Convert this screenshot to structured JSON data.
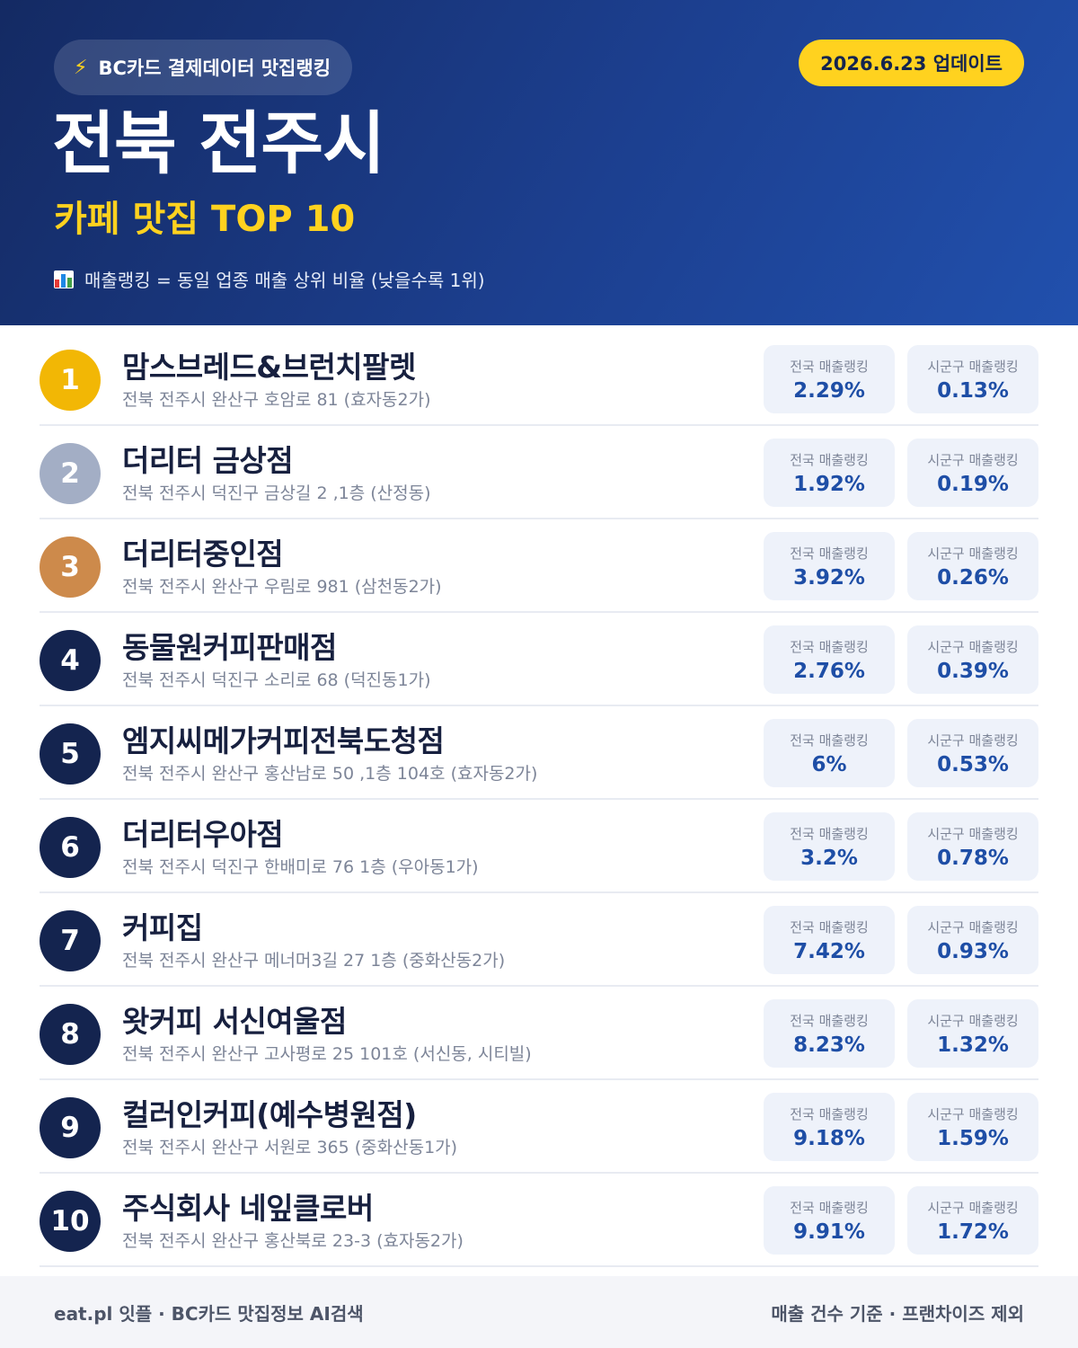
{
  "header": {
    "brand_icon": "lightning-bolt-icon",
    "brand_label": "BC카드 결제데이터 맛집랭킹",
    "update_label": "2026.6.23 업데이트",
    "title": "전북 전주시",
    "subtitle": "카페 맛집 TOP 10",
    "legend_icon": "bar-chart-icon",
    "legend_text": "매출랭킹 = 동일 업종 매출 상위 비율 (낮을수록 1위)"
  },
  "colors": {
    "header_dark": "#142a63",
    "header_light": "#2150ad",
    "accent_yellow": "#ffd21f",
    "gold": "#f2b705",
    "silver": "#a3aec5",
    "bronze": "#cd8a4b",
    "navy": "#14244f",
    "value_blue": "#1e4ea6"
  },
  "labels": {
    "national": "전국 매출랭킹",
    "regional": "시군구 매출랭킹"
  },
  "rankings": [
    {
      "rank": "1",
      "medal": "gold",
      "name": "맘스브레드&브런치팔렛",
      "address": "전북 전주시 완산구 호암로 81 (효자동2가)",
      "national": "2.29%",
      "regional": "0.13%"
    },
    {
      "rank": "2",
      "medal": "silver",
      "name": "더리터 금상점",
      "address": "전북 전주시 덕진구 금상길 2 ,1층 (산정동)",
      "national": "1.92%",
      "regional": "0.19%"
    },
    {
      "rank": "3",
      "medal": "bronze",
      "name": "더리터중인점",
      "address": "전북 전주시 완산구 우림로 981 (삼천동2가)",
      "national": "3.92%",
      "regional": "0.26%"
    },
    {
      "rank": "4",
      "medal": "navy",
      "name": "동물원커피판매점",
      "address": "전북 전주시 덕진구 소리로 68 (덕진동1가)",
      "national": "2.76%",
      "regional": "0.39%"
    },
    {
      "rank": "5",
      "medal": "navy",
      "name": "엠지씨메가커피전북도청점",
      "address": "전북 전주시 완산구 홍산남로 50 ,1층 104호 (효자동2가)",
      "national": "6%",
      "regional": "0.53%"
    },
    {
      "rank": "6",
      "medal": "navy",
      "name": "더리터우아점",
      "address": "전북 전주시 덕진구 한배미로 76 1층 (우아동1가)",
      "national": "3.2%",
      "regional": "0.78%"
    },
    {
      "rank": "7",
      "medal": "navy",
      "name": "커피집",
      "address": "전북 전주시 완산구 메너머3길 27 1층 (중화산동2가)",
      "national": "7.42%",
      "regional": "0.93%"
    },
    {
      "rank": "8",
      "medal": "navy",
      "name": "왓커피 서신여울점",
      "address": "전북 전주시 완산구 고사평로 25 101호 (서신동, 시티빌)",
      "national": "8.23%",
      "regional": "1.32%"
    },
    {
      "rank": "9",
      "medal": "navy",
      "name": "컬러인커피(예수병원점)",
      "address": "전북 전주시 완산구 서원로 365 (중화산동1가)",
      "national": "9.18%",
      "regional": "1.59%"
    },
    {
      "rank": "10",
      "medal": "navy",
      "name": "주식회사 네잎클로버",
      "address": "전북 전주시 완산구 홍산북로 23-3 (효자동2가)",
      "national": "9.91%",
      "regional": "1.72%"
    }
  ],
  "footer": {
    "left": "eat.pl 잇플 · BC카드 맛집정보 AI검색",
    "right": "매출 건수 기준 · 프랜차이즈 제외"
  }
}
